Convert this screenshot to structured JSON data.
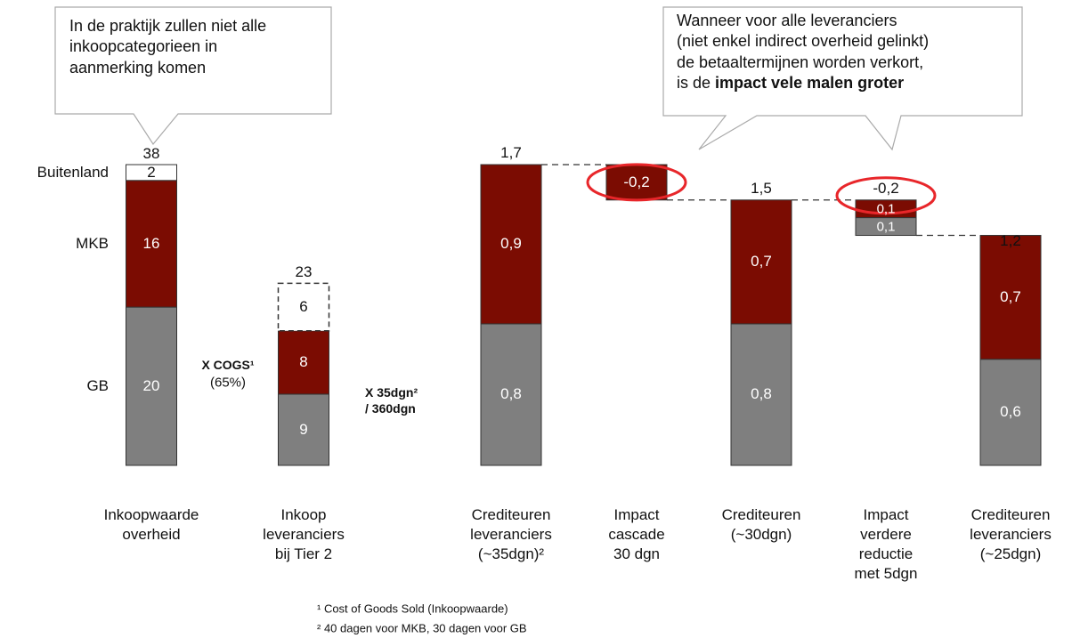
{
  "chart_data": [
    {
      "type": "stacked_bar",
      "categories": [
        "Inkoopwaarde\noverheid",
        "Inkoop\nleveranciers\nbij Tier 2"
      ],
      "series": [
        {
          "name": "GB",
          "color": "#7f7f7f",
          "values": [
            20,
            9
          ],
          "line_style": [
            "solid",
            "solid"
          ]
        },
        {
          "name": "MKB",
          "color": "#7b0c02",
          "values": [
            16,
            8
          ],
          "line_style": [
            "solid",
            "solid"
          ]
        },
        {
          "name": "Buitenland",
          "color": "#ffffff",
          "values": [
            2,
            6
          ],
          "line_style": [
            "solid",
            "dashed"
          ]
        }
      ],
      "totals": [
        38,
        23
      ],
      "multipliers": [
        {
          "label": "X  COGS¹",
          "detail": "(65%)"
        },
        {
          "label": "X  35dgn²\n/ 360dgn"
        }
      ],
      "callout": "In de praktijk zullen niet alle\ninkoopcategorieen in\naanmerking komen"
    },
    {
      "type": "waterfall",
      "categories": [
        "Crediteuren\nleveranciers\n(~35dgn)²",
        "Impact\ncascade\n30 dgn",
        "Crediteuren\n(~30dgn)",
        "Impact\nverdere\nreductie\nmet 5dgn",
        "Crediteuren\nleveranciers\n(~25dgn)"
      ],
      "series": [
        {
          "color": "#7f7f7f",
          "values": [
            0.8,
            null,
            0.8,
            -0.1,
            0.6
          ],
          "value_labels": [
            "0,8",
            null,
            "0,8",
            "0,1",
            "0,6"
          ]
        },
        {
          "color": "#7b0c02",
          "values": [
            0.9,
            -0.2,
            0.7,
            -0.1,
            0.7
          ],
          "value_labels": [
            "0,9",
            "-0,2",
            "0,7",
            "0,1",
            "0,7"
          ]
        }
      ],
      "totals": [
        1.7,
        null,
        1.5,
        -0.2,
        1.2
      ],
      "total_labels": [
        "1,7",
        null,
        "1,5",
        "-0,2",
        "1,2"
      ],
      "highlight_color": "#e8262a",
      "callout": {
        "text": "Wanneer voor alle leveranciers\n(niet enkel indirect overheid gelinkt)\nde betaaltermijnen worden verkort,\nis de ",
        "emphasis": "impact vele malen groter"
      }
    }
  ],
  "footnotes": [
    "¹ Cost of Goods Sold (Inkoopwaarde)",
    "² 40 dagen voor MKB, 30 dagen voor GB"
  ]
}
